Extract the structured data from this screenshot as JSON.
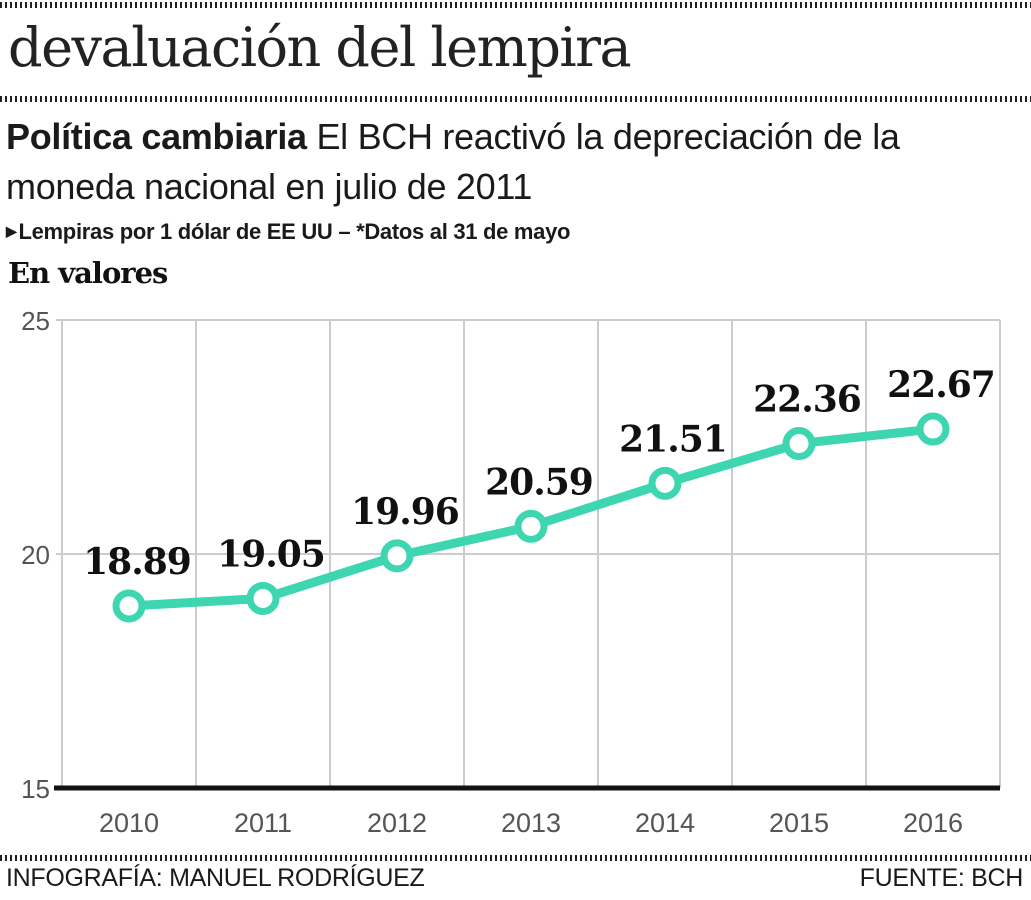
{
  "header": {
    "headline": "devaluación del lempira",
    "subtitle_lead": "Política cambiaria",
    "subtitle_rest": " El BCH reactivó la depreciación de la moneda nacional en julio de 2011",
    "note_marker": "triangle-right-icon",
    "note": "Lempiras por 1 dólar de EE UU – *Datos al 31 de mayo",
    "chart_heading": "En valores"
  },
  "footer": {
    "credit": "INFOGRAFÍA: MANUEL RODRÍGUEZ",
    "source": "FUENTE: BCH"
  },
  "colors": {
    "line": "#3dd6b0",
    "grid": "#cccccc",
    "axis": "#111111",
    "label": "#111111",
    "tick": "#555555"
  },
  "chart_data": {
    "type": "line",
    "title": "En valores",
    "xlabel": "",
    "ylabel": "Lempiras por 1 dólar de EE UU",
    "categories": [
      "2010",
      "2011",
      "2012",
      "2013",
      "2014",
      "2015",
      "2016"
    ],
    "series": [
      {
        "name": "Lempiras por 1 dólar de EE UU",
        "values": [
          18.89,
          19.05,
          19.96,
          20.59,
          21.51,
          22.36,
          22.67
        ],
        "data_labels": [
          "18.89",
          "19.05",
          "19.96",
          "20.59",
          "21.51",
          "22.36",
          "22.67"
        ]
      }
    ],
    "ylim": [
      15,
      25
    ],
    "yticks": [
      15,
      20,
      25
    ],
    "ytick_labels": [
      "15",
      "20",
      "25"
    ],
    "grid": true,
    "legend": "none",
    "markers": "hollow-circle"
  }
}
